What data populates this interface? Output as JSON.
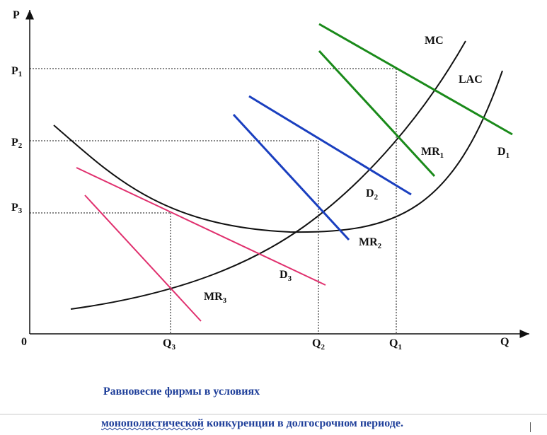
{
  "axes": {
    "y_label": "P",
    "x_label": "Q",
    "origin_label": "0"
  },
  "price_levels": [
    {
      "main": "P",
      "sub": "1"
    },
    {
      "main": "P",
      "sub": "2"
    },
    {
      "main": "P",
      "sub": "3"
    }
  ],
  "quantity_levels": [
    {
      "main": "Q",
      "sub": "3"
    },
    {
      "main": "Q",
      "sub": "2"
    },
    {
      "main": "Q",
      "sub": "1"
    }
  ],
  "curve_labels": {
    "mc": "MC",
    "lac": "LAC",
    "mr1": {
      "main": "MR",
      "sub": "1"
    },
    "d1": {
      "main": "D",
      "sub": "1"
    },
    "d2": {
      "main": "D",
      "sub": "2"
    },
    "mr2": {
      "main": "MR",
      "sub": "2"
    },
    "d3": {
      "main": "D",
      "sub": "3"
    },
    "mr3": {
      "main": "MR",
      "sub": "3"
    }
  },
  "colors": {
    "green": "#1a8a1a",
    "blue": "#1a3fbf",
    "pink": "#e0306e",
    "black": "#111111",
    "caption": "#1f3f9a"
  },
  "caption": {
    "line1": "Равновесие фирмы в условиях",
    "line2_underlined": "монополистической",
    "line2_rest": " конкуренции в долгосрочном периоде."
  }
}
